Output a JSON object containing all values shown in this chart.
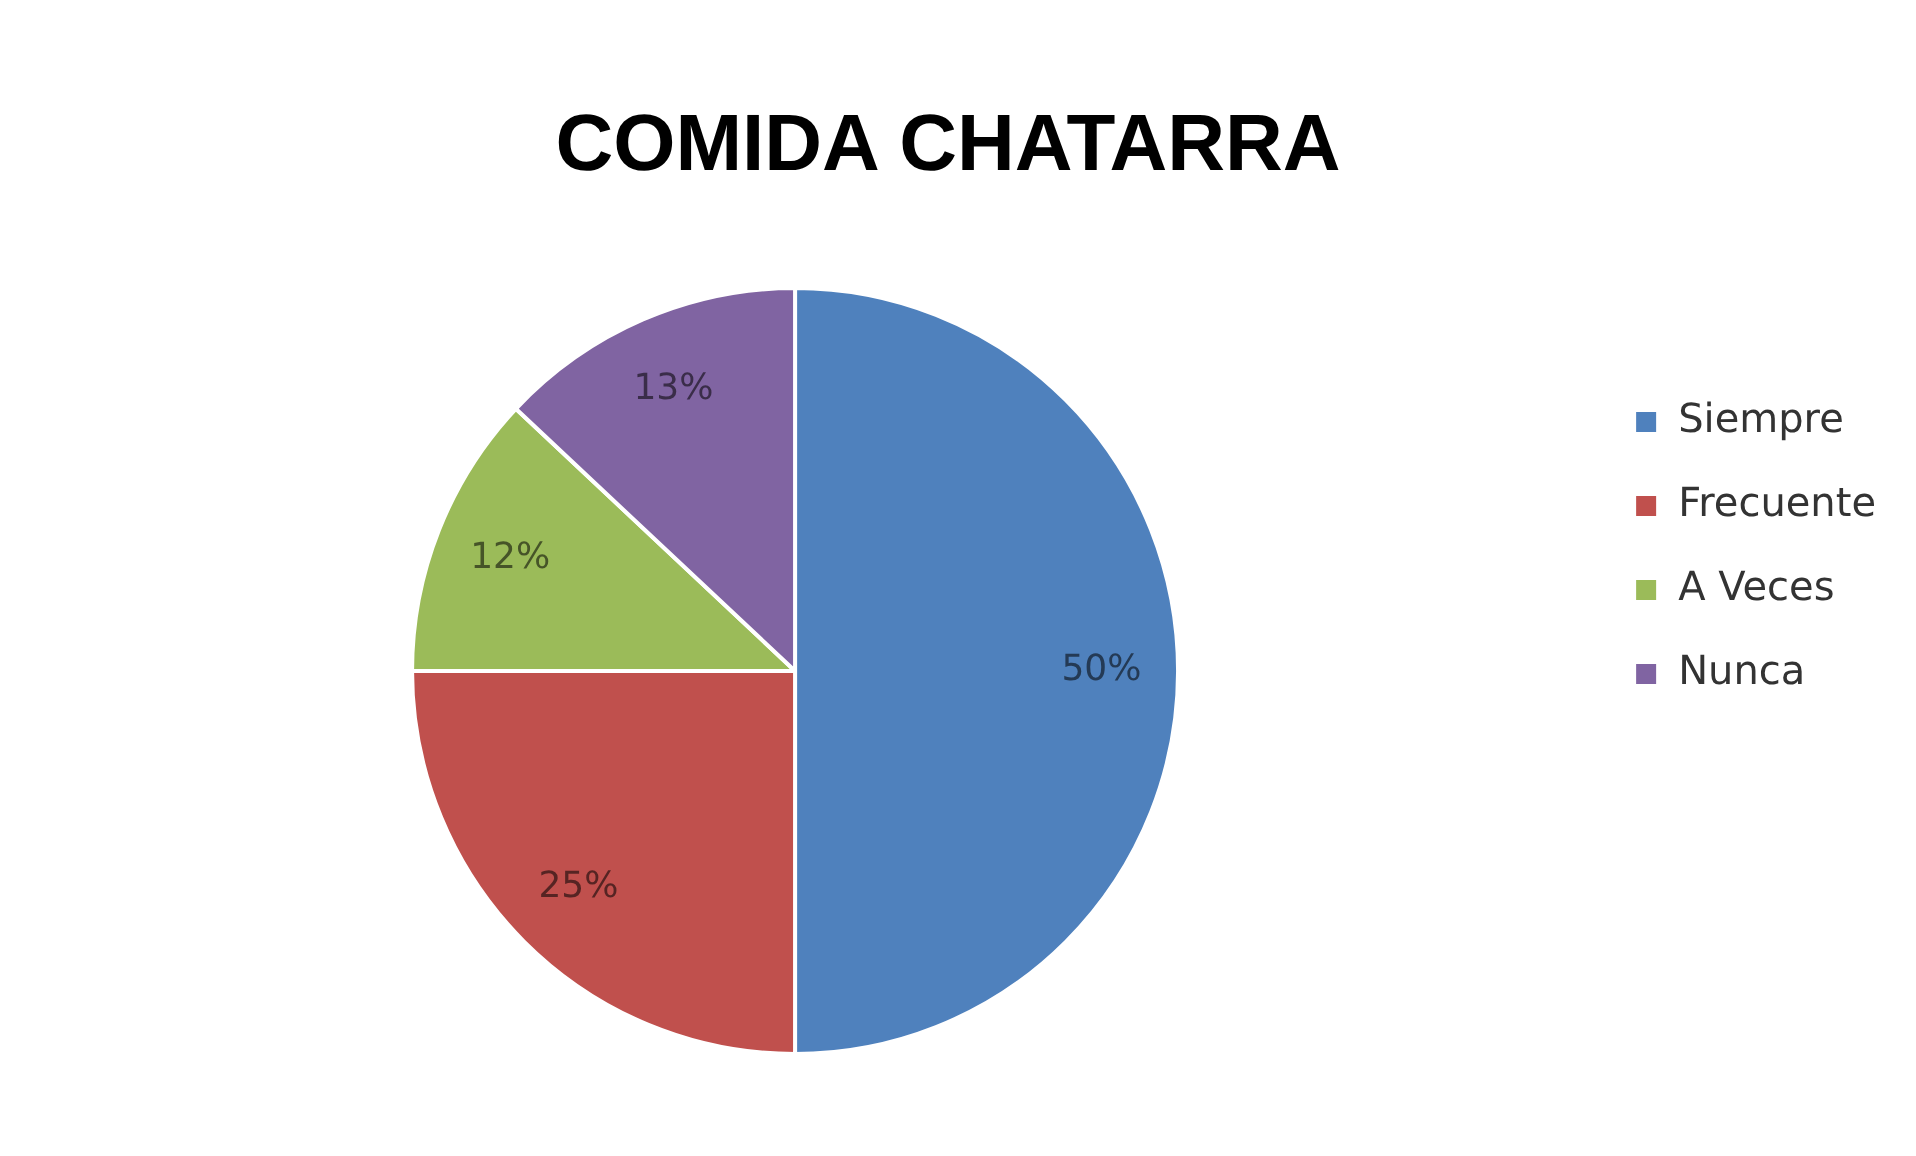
{
  "chart_data": {
    "type": "pie",
    "title": "COMIDA CHATARRA",
    "categories": [
      "Siempre",
      "Frecuente",
      "A Veces",
      "Nunca"
    ],
    "values": [
      50,
      25,
      12,
      13
    ],
    "colors": [
      "#4f81bd",
      "#c0504d",
      "#9bbb59",
      "#8064a2"
    ],
    "value_labels": [
      "50%",
      "25%",
      "12%",
      "13%"
    ],
    "legend": "right"
  }
}
